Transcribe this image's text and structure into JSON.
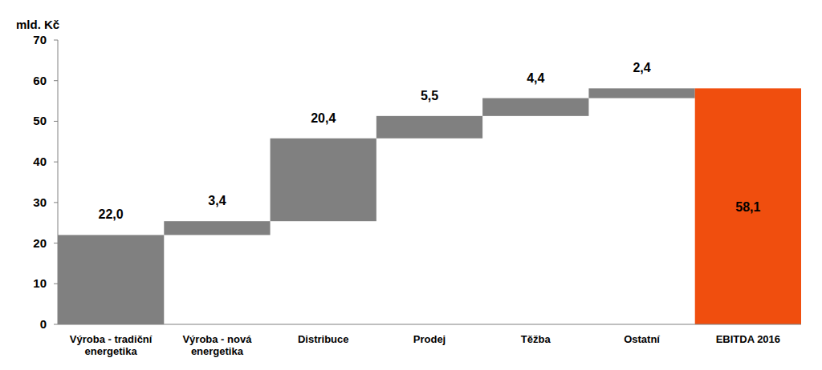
{
  "chart_data": {
    "type": "waterfall",
    "y_label": "mld. Kč",
    "categories": [
      "Výroba - tradiční energetika",
      "Výroba - nová energetika",
      "Distribuce",
      "Prodej",
      "Těžba",
      "Ostatní",
      "EBITDA  2016"
    ],
    "values": [
      22.0,
      3.4,
      20.4,
      5.5,
      4.4,
      2.4,
      58.1
    ],
    "value_labels": [
      "22,0",
      "3,4",
      "20,4",
      "5,5",
      "4,4",
      "2,4",
      "58,1"
    ],
    "colors": [
      "#808080",
      "#808080",
      "#808080",
      "#808080",
      "#808080",
      "#808080",
      "#f04e0e"
    ],
    "ylim": [
      0,
      70
    ],
    "yticks": [
      0,
      10,
      20,
      30,
      40,
      50,
      60,
      70
    ],
    "grid": false,
    "data_labels": true
  }
}
